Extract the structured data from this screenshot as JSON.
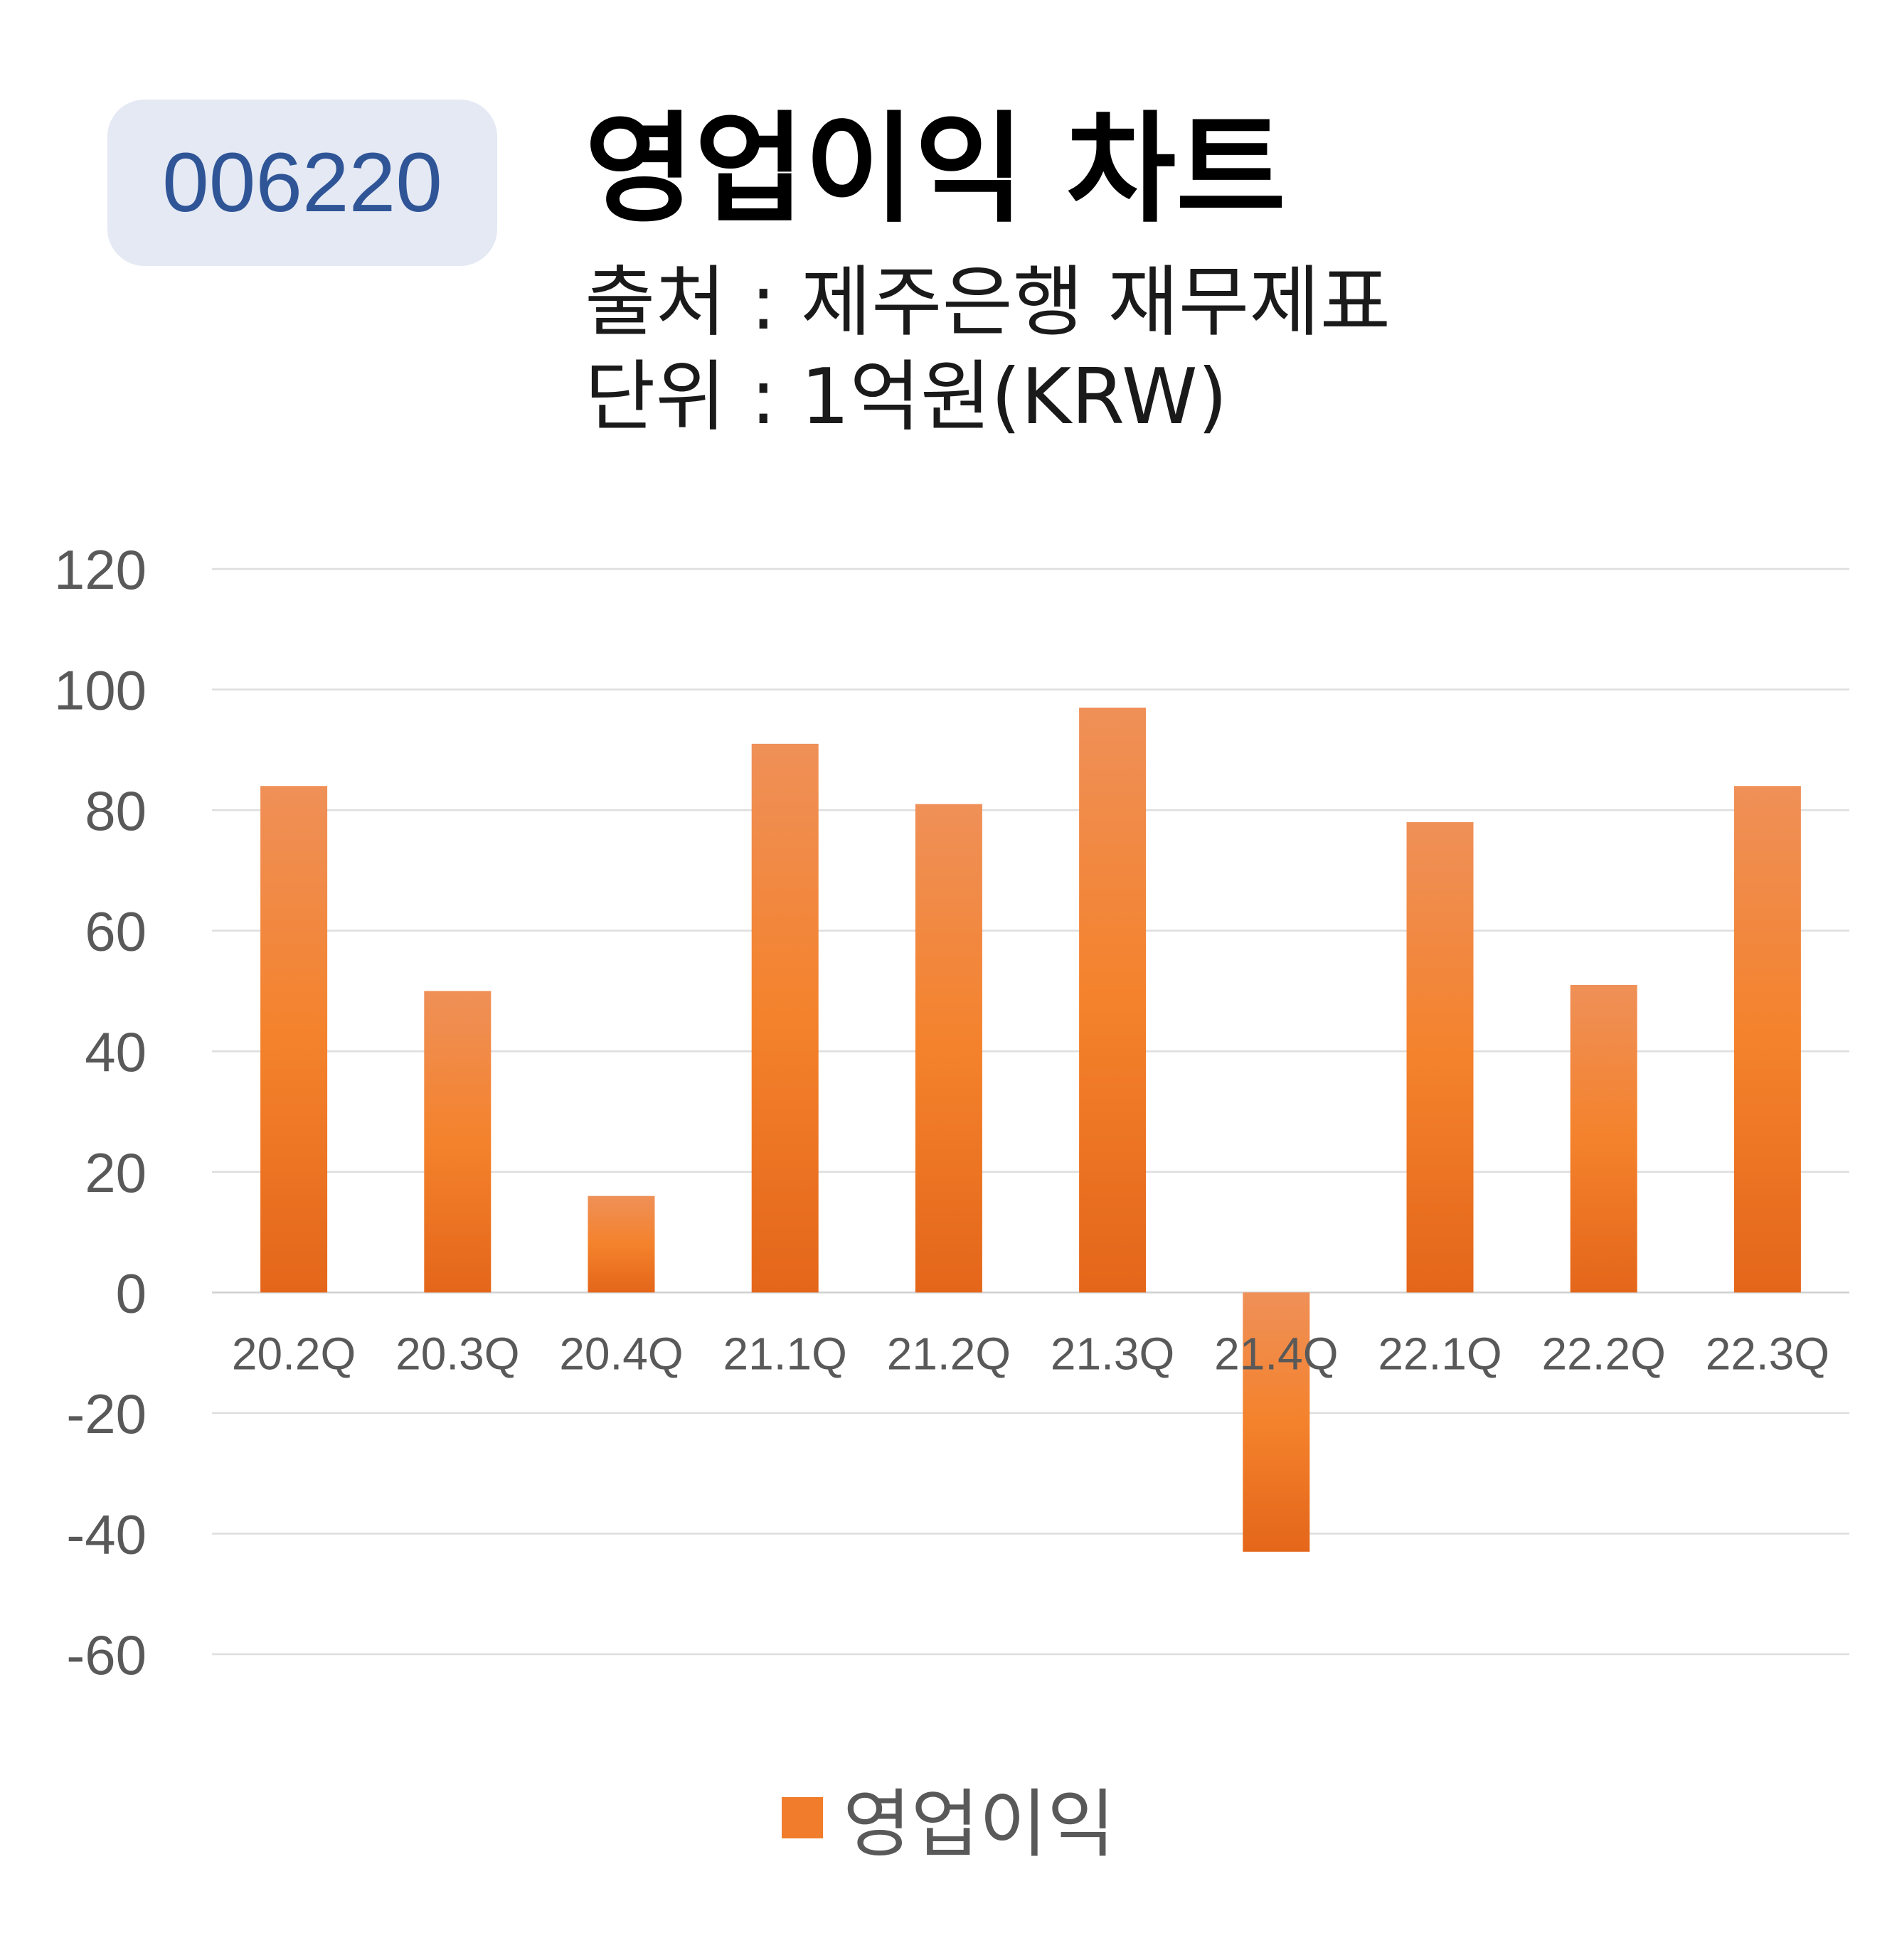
{
  "badge": {
    "code": "006220"
  },
  "header": {
    "title": "영업이익 차트",
    "source": "출처 : 제주은행 재무제표",
    "unit": "단위 : 1억원(KRW)"
  },
  "chart_data": {
    "type": "bar",
    "categories": [
      "20.2Q",
      "20.3Q",
      "20.4Q",
      "21.1Q",
      "21.2Q",
      "21.3Q",
      "21.4Q",
      "22.1Q",
      "22.2Q",
      "22.3Q"
    ],
    "series": [
      {
        "name": "영업이익",
        "values": [
          84,
          50,
          16,
          91,
          81,
          97,
          -43,
          78,
          51,
          84
        ]
      }
    ],
    "ylim": [
      -60,
      120
    ],
    "yticks": [
      120,
      100,
      80,
      60,
      40,
      20,
      0,
      -20,
      -40,
      -60
    ],
    "grid": true,
    "legend_position": "bottom-center",
    "bar_color": "#f07c2c"
  },
  "legend": {
    "label": "영업이익"
  }
}
